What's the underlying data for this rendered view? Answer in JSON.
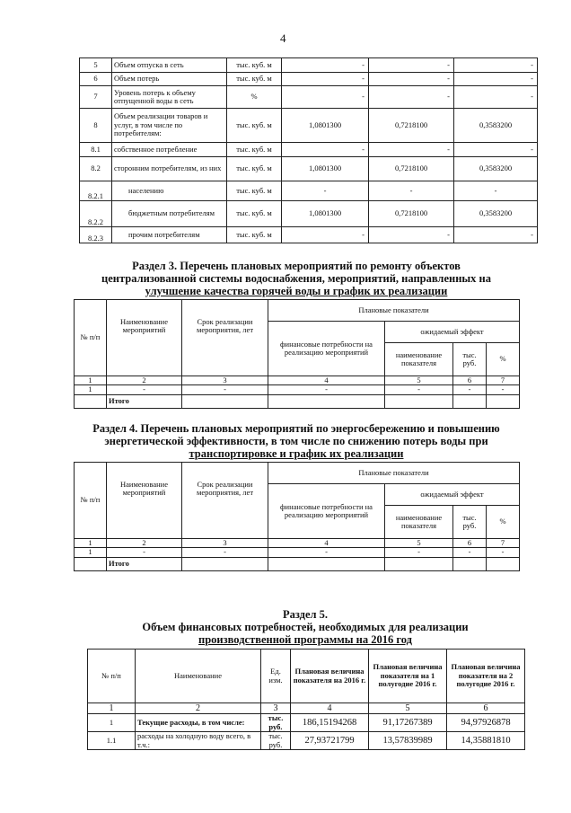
{
  "page_number": "4",
  "table1": {
    "rows": [
      {
        "no": "5",
        "name": "Объем отпуска в сеть",
        "unit": "тыс. куб. м",
        "v1": "-",
        "v2": "-",
        "v3": "-"
      },
      {
        "no": "6",
        "name": "Объем потерь",
        "unit": "тыс. куб. м",
        "v1": "-",
        "v2": "-",
        "v3": "-"
      },
      {
        "no": "7",
        "name": "Уровень потерь к объему отпущенной воды  в сеть",
        "unit": "%",
        "v1": "-",
        "v2": "-",
        "v3": "-"
      },
      {
        "no": "8",
        "name": "Объем реализации товаров и услуг, в том числе по потребителям:",
        "unit": "тыс. куб. м",
        "v1": "1,0801300",
        "v2": "0,7218100",
        "v3": "0,3583200"
      },
      {
        "no": "8.1",
        "name": "собственное потребление",
        "unit": "тыс. куб. м",
        "v1": "-",
        "v2": "-",
        "v3": "-"
      },
      {
        "no": "8.2",
        "name": "сторонним потребителям, из них",
        "unit": "тыс. куб. м",
        "v1": "1,0801300",
        "v2": "0,7218100",
        "v3": "0,3583200"
      },
      {
        "no": "8.2.1",
        "name": "населению",
        "unit": "тыс. куб. м",
        "v1": "-",
        "v2": "-",
        "v3": "-"
      },
      {
        "no": "8.2.2",
        "name": "бюджетным потребителям",
        "unit": "тыс. куб. м",
        "v1": "1,0801300",
        "v2": "0,7218100",
        "v3": "0,3583200"
      },
      {
        "no": "8.2.3",
        "name": "прочим потребителям",
        "unit": "тыс. куб. м",
        "v1": "-",
        "v2": "-",
        "v3": "-"
      }
    ]
  },
  "section3": {
    "title_lines": [
      "Раздел 3. Перечень плановых мероприятий по ремонту объектов",
      "централизованной системы водоснабжения, мероприятий, направленных на",
      "улучшение качества горячей воды и график их реализации"
    ]
  },
  "section4": {
    "title_lines": [
      "Раздел 4. Перечень плановых мероприятий по энергосбережению и повышению",
      "энергетической эффективности, в том числе по снижению потерь воды при",
      "транспортировке и график их реализации"
    ]
  },
  "plan_table": {
    "headers": {
      "no": "№ п/п",
      "name": "Наименование мероприятий",
      "term": "Срок реализации мероприятия, лет",
      "planned": "Плановые показатели",
      "finance": "финансовые потребности на реализацию мероприятий",
      "effect": "ожидаемый эффект",
      "indicator": "наименование показателя",
      "rub": "тыс. руб.",
      "pct": "%"
    },
    "col_numbers": [
      "1",
      "2",
      "3",
      "4",
      "5",
      "6",
      "7"
    ],
    "row": [
      "1",
      "-",
      "-",
      "-",
      "-",
      "-",
      "-"
    ],
    "total_label": "Итого"
  },
  "section5": {
    "title_lines": [
      "Раздел 5.",
      "Объем финансовых потребностей, необходимых для реализации",
      "производственной программы на 2016 год"
    ],
    "headers": [
      "№ п/п",
      "Наименование",
      "Ед. изм.",
      "Плановая величина показателя на 2016 г.",
      "Плановая величина показателя на 1 полугодие 2016 г.",
      "Плановая величина показателя на 2 полугодие 2016 г."
    ],
    "col_numbers": [
      "1",
      "2",
      "3",
      "4",
      "5",
      "6"
    ],
    "rows": [
      {
        "no": "1",
        "name": "Текущие расходы, в том числе:",
        "unit": "тыс. руб.",
        "v1": "186,15194268",
        "v2": "91,17267389",
        "v3": "94,97926878"
      },
      {
        "no": "1.1",
        "name": "расходы на холодную воду всего, в т.ч.:",
        "unit": "тыс. руб.",
        "v1": "27,93721799",
        "v2": "13,57839989",
        "v3": "14,35881810"
      }
    ]
  }
}
